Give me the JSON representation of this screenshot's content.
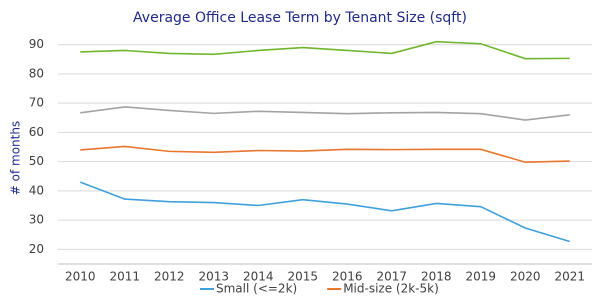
{
  "chart_data": {
    "type": "line",
    "title": "Average Office Lease Term by Tenant Size (sqft)",
    "y_label": "# of months",
    "categories": [
      "2010",
      "2011",
      "2012",
      "2013",
      "2014",
      "2015",
      "2016",
      "2017",
      "2018",
      "2019",
      "2020",
      "2021"
    ],
    "series": [
      {
        "color": "#6fb62c",
        "values": [
          87.5,
          88,
          87,
          86.7,
          88,
          89,
          88,
          87,
          91,
          90.3,
          85.2,
          85.3
        ]
      },
      {
        "color": "#a3a3a3",
        "values": [
          66.7,
          68.7,
          67.5,
          66.5,
          67.2,
          66.8,
          66.4,
          66.7,
          66.8,
          66.4,
          64.2,
          66
        ]
      },
      {
        "name": "Mid-size (2k-5k)",
        "color": "#e8772e",
        "values": [
          54,
          55.2,
          53.5,
          53.2,
          53.8,
          53.6,
          54.2,
          54.1,
          54.2,
          54.2,
          49.8,
          50.2
        ]
      },
      {
        "name": "Small (<=2k)",
        "color": "#3fa0dc",
        "values": [
          43,
          37.2,
          36.3,
          36,
          35,
          37,
          35.5,
          33.2,
          35.7,
          34.6,
          27.3,
          22.7
        ]
      }
    ],
    "ylim": [
      15,
      95
    ],
    "yticks": [
      20,
      30,
      40,
      50,
      60,
      70,
      80,
      90
    ],
    "grid": true
  }
}
